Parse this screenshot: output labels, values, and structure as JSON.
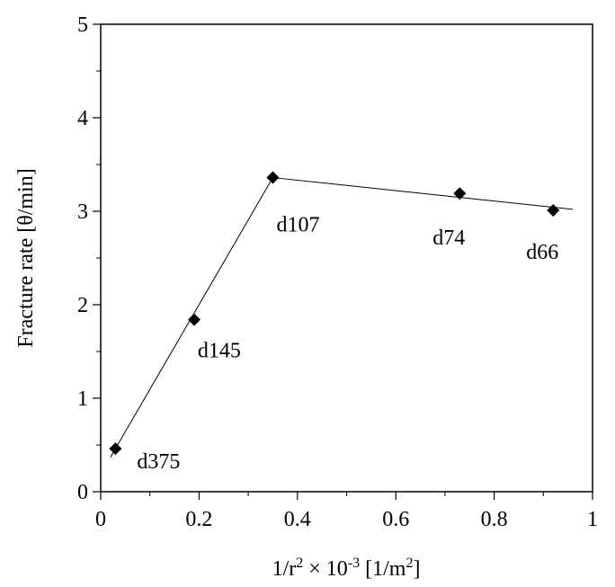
{
  "chart_data": {
    "type": "scatter",
    "title": "",
    "xlabel": {
      "base": "1/r",
      "sup1": "2",
      "mid": " × 10",
      "sup2": "-3",
      "unit": " [1/m",
      "sup3": "2",
      "end": "]"
    },
    "ylabel": "Fracture rate [θ/min]",
    "xlim": [
      0,
      1
    ],
    "ylim": [
      0,
      5
    ],
    "x_ticks": [
      "0",
      "0.2",
      "0.4",
      "0.6",
      "0.8",
      "1"
    ],
    "y_ticks": [
      "0",
      "1",
      "2",
      "3",
      "4",
      "5"
    ],
    "grid": false,
    "points": [
      {
        "x": 0.03,
        "y": 0.46,
        "label": "d375"
      },
      {
        "x": 0.19,
        "y": 1.84,
        "label": "d145"
      },
      {
        "x": 0.35,
        "y": 3.36,
        "label": "d107"
      },
      {
        "x": 0.73,
        "y": 3.19,
        "label": "d74"
      },
      {
        "x": 0.92,
        "y": 3.01,
        "label": "d66"
      }
    ],
    "trend_lines": [
      {
        "from": [
          0.02,
          0.37
        ],
        "to": [
          0.35,
          3.36
        ]
      },
      {
        "from": [
          0.35,
          3.36
        ],
        "to": [
          0.96,
          3.02
        ]
      }
    ]
  }
}
